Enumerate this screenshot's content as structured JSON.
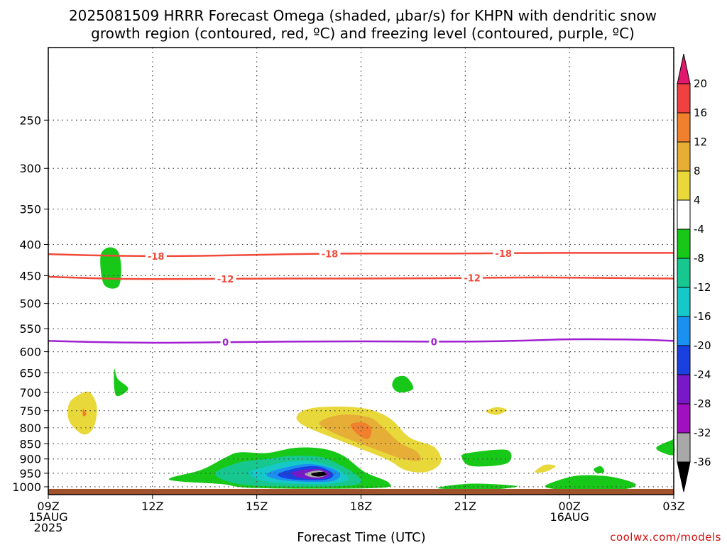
{
  "title_line1": "2025081509 HRRR Forecast Omega (shaded, μbar/s) for KHPN with dendritic snow",
  "title_line2": "growth region (contoured, red, ºC) and freezing level (contoured, purple, ºC)",
  "xlabel": "Forecast Time (UTC)",
  "credit": "coolwx.com/models",
  "chart_data": {
    "type": "contour",
    "x_ticks": [
      {
        "hour": 0,
        "lines": [
          "09Z",
          "15AUG",
          "2025"
        ]
      },
      {
        "hour": 3,
        "lines": [
          "12Z"
        ]
      },
      {
        "hour": 6,
        "lines": [
          "15Z"
        ]
      },
      {
        "hour": 9,
        "lines": [
          "18Z"
        ]
      },
      {
        "hour": 12,
        "lines": [
          "21Z"
        ]
      },
      {
        "hour": 15,
        "lines": [
          "00Z",
          "16AUG"
        ]
      },
      {
        "hour": 18,
        "lines": [
          "03Z"
        ]
      }
    ],
    "x_range_hours": [
      0,
      18
    ],
    "y_scale": "log-pressure",
    "y_range_hPa": [
      1030,
      190
    ],
    "y_ticks_hPa": [
      250,
      300,
      350,
      400,
      450,
      500,
      550,
      600,
      650,
      700,
      750,
      800,
      850,
      900,
      950,
      1000
    ],
    "grid": true,
    "colorbar": {
      "units": "μbar/s",
      "labels": [
        "20",
        "16",
        "12",
        "8",
        "4",
        "-4",
        "-8",
        "-12",
        "-16",
        "-20",
        "-24",
        "-28",
        "-32",
        "-36"
      ],
      "colors": [
        "#e0186e",
        "#f04040",
        "#f0802e",
        "#e6ae36",
        "#e8d83a",
        "#ffffff",
        "#18c818",
        "#16c890",
        "#16c8c8",
        "#1a90f0",
        "#1a40e0",
        "#7818c8",
        "#a010c0",
        "#a8a8a8",
        "#000000"
      ]
    },
    "contours": [
      {
        "name": "-18",
        "kind": "dgz",
        "color": "#f04a3a",
        "label": "-18",
        "points": [
          [
            0,
            415
          ],
          [
            2,
            418
          ],
          [
            4,
            418
          ],
          [
            6,
            416
          ],
          [
            8,
            414
          ],
          [
            10,
            414
          ],
          [
            12,
            414
          ],
          [
            14,
            413
          ],
          [
            16,
            413
          ],
          [
            18,
            413
          ]
        ],
        "label_hours": [
          3.1,
          8.1,
          13.1
        ]
      },
      {
        "name": "-12",
        "kind": "dgz",
        "color": "#f04a3a",
        "label": "-12",
        "points": [
          [
            0,
            452
          ],
          [
            2,
            456
          ],
          [
            4,
            456
          ],
          [
            6,
            455
          ],
          [
            8,
            455
          ],
          [
            10,
            455
          ],
          [
            12,
            454
          ],
          [
            14,
            453
          ],
          [
            16,
            454
          ],
          [
            18,
            455
          ]
        ],
        "label_hours": [
          5.1,
          12.2
        ]
      },
      {
        "name": "0",
        "kind": "freezing",
        "color": "#a020d0",
        "label": "0",
        "points": [
          [
            0,
            576
          ],
          [
            2,
            580
          ],
          [
            4,
            580
          ],
          [
            6,
            578
          ],
          [
            8,
            577
          ],
          [
            10,
            577
          ],
          [
            12,
            578
          ],
          [
            14,
            575
          ],
          [
            15,
            572
          ],
          [
            17,
            573
          ],
          [
            18,
            576
          ]
        ],
        "label_hours": [
          5.1,
          11.1
        ]
      }
    ],
    "shaded_regions": [
      {
        "value": "-8",
        "color": "#18c818",
        "points": [
          [
            1.6,
            465
          ],
          [
            1.5,
            420
          ],
          [
            1.7,
            405
          ],
          [
            2.0,
            410
          ],
          [
            2.1,
            440
          ],
          [
            2.0,
            470
          ]
        ]
      },
      {
        "value": "-8",
        "color": "#18c818",
        "points": [
          [
            1.9,
            640
          ],
          [
            2.0,
            665
          ],
          [
            2.3,
            690
          ],
          [
            2.0,
            710
          ],
          [
            1.9,
            690
          ]
        ]
      },
      {
        "value": "4",
        "color": "#e8d83a",
        "points": [
          [
            0.9,
            705
          ],
          [
            1.2,
            700
          ],
          [
            1.4,
            740
          ],
          [
            1.3,
            800
          ],
          [
            1.0,
            820
          ],
          [
            0.6,
            780
          ],
          [
            0.6,
            730
          ]
        ]
      },
      {
        "value": "12",
        "color": "#f0802e",
        "points": [
          [
            1.0,
            745
          ],
          [
            1.1,
            760
          ],
          [
            1.0,
            765
          ]
        ]
      },
      {
        "value": "4",
        "color": "#e8d83a",
        "points": [
          [
            7.2,
            758
          ],
          [
            7.8,
            740
          ],
          [
            9.0,
            742
          ],
          [
            9.8,
            770
          ],
          [
            10.4,
            830
          ],
          [
            11.1,
            860
          ],
          [
            11.3,
            910
          ],
          [
            10.9,
            945
          ],
          [
            10.3,
            940
          ],
          [
            9.8,
            905
          ],
          [
            9.3,
            880
          ],
          [
            8.4,
            840
          ],
          [
            7.3,
            790
          ]
        ]
      },
      {
        "value": "8",
        "color": "#e6ae36",
        "points": [
          [
            7.8,
            785
          ],
          [
            8.4,
            762
          ],
          [
            9.2,
            768
          ],
          [
            9.6,
            795
          ],
          [
            10.1,
            845
          ],
          [
            10.6,
            875
          ],
          [
            10.7,
            905
          ],
          [
            10.2,
            900
          ],
          [
            9.7,
            880
          ],
          [
            9.0,
            850
          ],
          [
            8.2,
            815
          ]
        ]
      },
      {
        "value": "12",
        "color": "#f0802e",
        "points": [
          [
            8.7,
            790
          ],
          [
            9.1,
            785
          ],
          [
            9.3,
            805
          ],
          [
            9.2,
            835
          ],
          [
            8.9,
            820
          ]
        ]
      },
      {
        "value": "-8",
        "color": "#18c818",
        "points": [
          [
            3.5,
            968
          ],
          [
            4.4,
            938
          ],
          [
            5.1,
            895
          ],
          [
            5.5,
            878
          ],
          [
            6.3,
            880
          ],
          [
            7.1,
            863
          ],
          [
            7.9,
            866
          ],
          [
            8.5,
            890
          ],
          [
            9.1,
            945
          ],
          [
            9.8,
            985
          ],
          [
            9.4,
            1005
          ],
          [
            6.0,
            1005
          ],
          [
            5.0,
            990
          ],
          [
            3.8,
            980
          ]
        ]
      },
      {
        "value": "-12",
        "color": "#16c890",
        "points": [
          [
            4.8,
            950
          ],
          [
            5.5,
            912
          ],
          [
            6.3,
            900
          ],
          [
            7.0,
            890
          ],
          [
            7.8,
            893
          ],
          [
            8.3,
            915
          ],
          [
            8.8,
            950
          ],
          [
            9.0,
            985
          ],
          [
            8.3,
            998
          ],
          [
            6.3,
            998
          ],
          [
            5.3,
            985
          ]
        ]
      },
      {
        "value": "-16",
        "color": "#16c8c8",
        "points": [
          [
            5.8,
            945
          ],
          [
            6.2,
            930
          ],
          [
            6.8,
            912
          ],
          [
            7.5,
            908
          ],
          [
            8.1,
            925
          ],
          [
            8.5,
            950
          ],
          [
            8.6,
            975
          ],
          [
            7.9,
            990
          ],
          [
            6.6,
            985
          ],
          [
            6.0,
            970
          ]
        ]
      },
      {
        "value": "-20",
        "color": "#1a90f0",
        "points": [
          [
            6.3,
            950
          ],
          [
            7.0,
            925
          ],
          [
            7.6,
            918
          ],
          [
            8.2,
            935
          ],
          [
            8.4,
            960
          ],
          [
            8.1,
            980
          ],
          [
            7.2,
            980
          ],
          [
            6.5,
            970
          ]
        ]
      },
      {
        "value": "-24",
        "color": "#1a40e0",
        "points": [
          [
            6.6,
            955
          ],
          [
            7.1,
            933
          ],
          [
            7.7,
            925
          ],
          [
            8.1,
            942
          ],
          [
            8.2,
            960
          ],
          [
            7.9,
            975
          ],
          [
            7.0,
            972
          ]
        ]
      },
      {
        "value": "-28",
        "color": "#7818c8",
        "points": [
          [
            7.0,
            950
          ],
          [
            7.4,
            937
          ],
          [
            7.9,
            937
          ],
          [
            8.1,
            955
          ],
          [
            7.9,
            970
          ],
          [
            7.3,
            968
          ]
        ]
      },
      {
        "value": "-32",
        "color": "#a8a8a8",
        "points": [
          [
            7.4,
            950
          ],
          [
            7.8,
            940
          ],
          [
            8.0,
            955
          ],
          [
            7.8,
            965
          ],
          [
            7.5,
            962
          ]
        ]
      },
      {
        "value": "-36",
        "color": "#000000",
        "points": [
          [
            7.6,
            950
          ],
          [
            7.9,
            945
          ],
          [
            8.0,
            955
          ],
          [
            7.8,
            962
          ],
          [
            7.6,
            958
          ]
        ]
      },
      {
        "value": "-8",
        "color": "#18c818",
        "points": [
          [
            9.9,
            683
          ],
          [
            10.0,
            662
          ],
          [
            10.3,
            660
          ],
          [
            10.5,
            690
          ],
          [
            10.1,
            700
          ]
        ]
      },
      {
        "value": "4",
        "color": "#e8d83a",
        "points": [
          [
            12.6,
            752
          ],
          [
            12.9,
            740
          ],
          [
            13.2,
            748
          ],
          [
            12.9,
            762
          ]
        ]
      },
      {
        "value": "-8",
        "color": "#18c818",
        "points": [
          [
            11.9,
            895
          ],
          [
            12.1,
            880
          ],
          [
            13.2,
            870
          ],
          [
            13.2,
            915
          ],
          [
            12.2,
            925
          ]
        ]
      },
      {
        "value": "4",
        "color": "#e8d83a",
        "points": [
          [
            14.0,
            945
          ],
          [
            14.3,
            920
          ],
          [
            14.6,
            925
          ],
          [
            14.3,
            945
          ]
        ]
      },
      {
        "value": "-8",
        "color": "#18c818",
        "points": [
          [
            15.7,
            935
          ],
          [
            15.9,
            925
          ],
          [
            16.0,
            945
          ],
          [
            15.8,
            950
          ]
        ]
      },
      {
        "value": "-8",
        "color": "#18c818",
        "points": [
          [
            14.3,
            1000
          ],
          [
            14.7,
            975
          ],
          [
            15.3,
            958
          ],
          [
            16.2,
            963
          ],
          [
            16.9,
            990
          ],
          [
            16.5,
            1010
          ],
          [
            15.0,
            1012
          ]
        ]
      },
      {
        "value": "-8",
        "color": "#18c818",
        "points": [
          [
            11.2,
            1005
          ],
          [
            12.2,
            988
          ],
          [
            13.5,
            998
          ],
          [
            12.5,
            1012
          ]
        ]
      },
      {
        "value": "-8",
        "color": "#18c818",
        "points": [
          [
            17.5,
            862
          ],
          [
            17.9,
            840
          ],
          [
            18.0,
            840
          ],
          [
            18.0,
            885
          ],
          [
            17.7,
            880
          ]
        ]
      }
    ],
    "ground": {
      "color": "#a0522d",
      "top_hPa": 1008
    }
  }
}
